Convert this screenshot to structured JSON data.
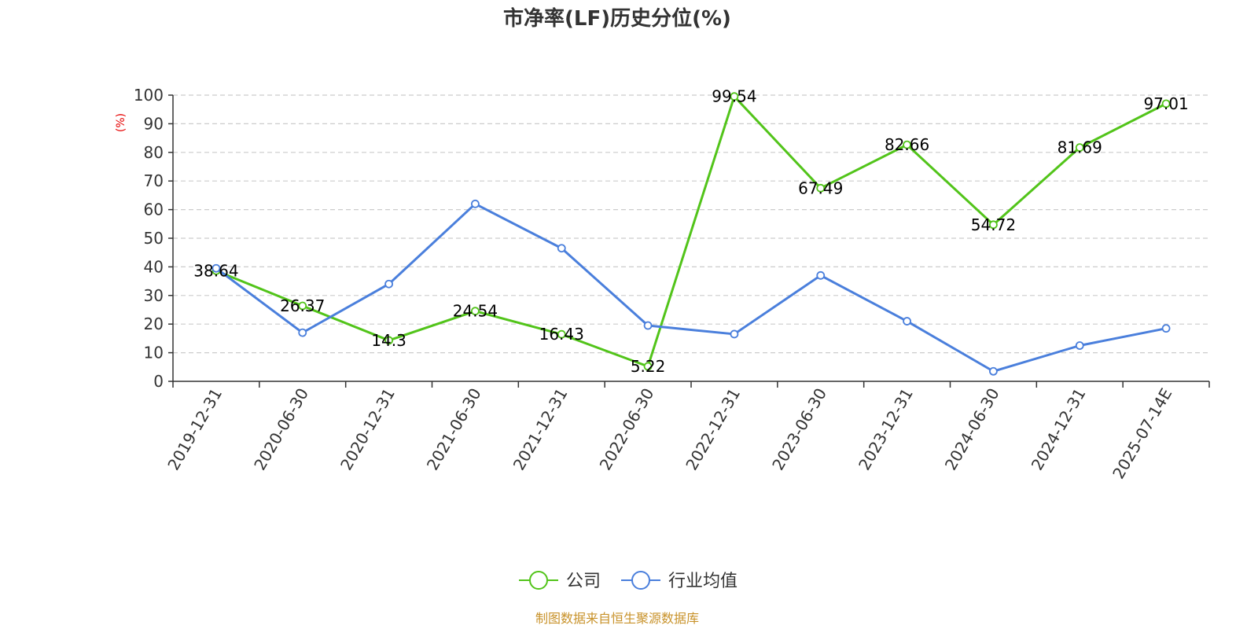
{
  "chart_data": {
    "type": "line",
    "title": "市净率(LF)历史分位(%)",
    "ylabel": "(%)",
    "ylim": [
      0,
      100
    ],
    "yticks": [
      0,
      10,
      20,
      30,
      40,
      50,
      60,
      70,
      80,
      90,
      100
    ],
    "grid": true,
    "legend_position": "bottom-center",
    "categories": [
      "2019-12-31",
      "2020-06-30",
      "2020-12-31",
      "2021-06-30",
      "2021-12-31",
      "2022-06-30",
      "2022-12-31",
      "2023-06-30",
      "2023-12-31",
      "2024-06-30",
      "2024-12-31",
      "2025-07-14E"
    ],
    "series": [
      {
        "name": "公司",
        "color": "#52c41a",
        "values": [
          38.64,
          26.37,
          14.3,
          24.54,
          16.43,
          5.22,
          99.54,
          67.49,
          82.66,
          54.72,
          81.69,
          97.01
        ],
        "labels": [
          "38.64",
          "26.37",
          "14.3",
          "24.54",
          "16.43",
          "5.22",
          "99.54",
          "67.49",
          "82.66",
          "54.72",
          "81.69",
          "97.01"
        ]
      },
      {
        "name": "行业均值",
        "color": "#4a7fdc",
        "values": [
          39.5,
          17.0,
          34.0,
          62.0,
          46.5,
          19.5,
          16.5,
          37.0,
          21.0,
          3.5,
          12.5,
          18.5
        ]
      }
    ],
    "source": "制图数据来自恒生聚源数据库"
  }
}
